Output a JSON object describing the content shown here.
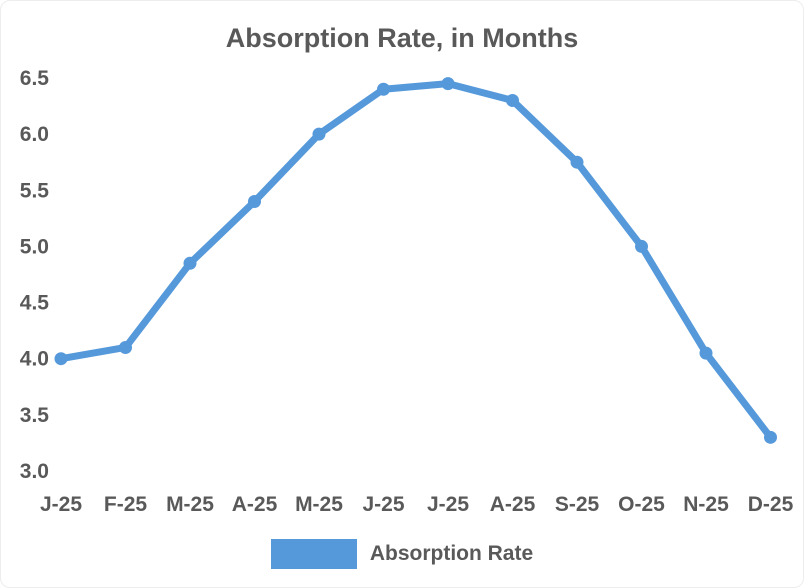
{
  "chart_data": {
    "type": "line",
    "title": "Absorption Rate, in Months",
    "categories": [
      "J-25",
      "F-25",
      "M-25",
      "A-25",
      "M-25",
      "J-25",
      "J-25",
      "A-25",
      "S-25",
      "O-25",
      "N-25",
      "D-25"
    ],
    "series": [
      {
        "name": "Absorption Rate",
        "values": [
          4.0,
          4.1,
          4.85,
          5.4,
          6.0,
          6.4,
          6.45,
          6.3,
          5.75,
          5.0,
          4.05,
          3.3
        ]
      }
    ],
    "xlabel": "",
    "ylabel": "",
    "ylim": [
      3.0,
      6.5
    ],
    "ytick_step": 0.5,
    "ytick_labels": [
      "6.5",
      "6.0",
      "5.5",
      "5.0",
      "4.5",
      "4.0",
      "3.5",
      "3.0"
    ],
    "grid": false,
    "legend": {
      "position": "bottom",
      "label": "Absorption Rate"
    },
    "colors": {
      "line": "#5599DB",
      "marker": "#5599DB",
      "title_text": "#595959",
      "tick_text": "#595959",
      "legend_text": "#595959"
    }
  }
}
